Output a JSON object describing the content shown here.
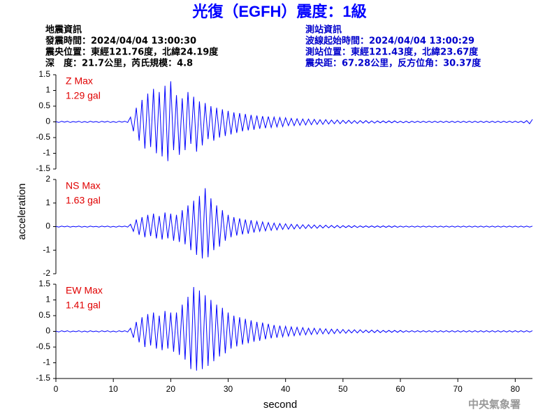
{
  "info": {
    "left_title": "地震資訊",
    "left_lines": [
      "發震時間：2024/04/04 13:00:30",
      "震央位置：東經121.76度，北緯24.19度",
      "深　度：21.7公里，芮氏規模：4.8"
    ],
    "right_title": "測站資訊",
    "right_lines": [
      "波線起始時間：2024/04/04 13:00:29",
      "測站位置：東經121.43度，北緯23.67度",
      "震央距：67.28公里，反方位角：30.37度"
    ],
    "watermark": "中央氣象署"
  },
  "chart_data": {
    "type": "line",
    "title": "光復（EGFH）震度：1級",
    "xlabel": "second",
    "ylabel": "acceleration",
    "xlim": [
      0,
      83
    ],
    "xticks": [
      0,
      10,
      20,
      30,
      40,
      50,
      60,
      70,
      80
    ],
    "x": [
      0,
      0.5,
      1,
      1.5,
      2,
      2.5,
      3,
      3.5,
      4,
      4.5,
      5,
      5.5,
      6,
      6.5,
      7,
      7.5,
      8,
      8.5,
      9,
      9.5,
      10,
      10.5,
      11,
      11.5,
      12,
      12.5,
      13,
      13.5,
      14,
      14.5,
      15,
      15.5,
      16,
      16.5,
      17,
      17.5,
      18,
      18.5,
      19,
      19.5,
      20,
      20.5,
      21,
      21.5,
      22,
      22.5,
      23,
      23.5,
      24,
      24.5,
      25,
      25.5,
      26,
      26.5,
      27,
      27.5,
      28,
      28.5,
      29,
      29.5,
      30,
      30.5,
      31,
      31.5,
      32,
      32.5,
      33,
      33.5,
      34,
      34.5,
      35,
      35.5,
      36,
      36.5,
      37,
      37.5,
      38,
      38.5,
      39,
      39.5,
      40,
      40.5,
      41,
      41.5,
      42,
      42.5,
      43,
      43.5,
      44,
      44.5,
      45,
      45.5,
      46,
      46.5,
      47,
      47.5,
      48,
      48.5,
      49,
      49.5,
      50,
      50.5,
      51,
      51.5,
      52,
      52.5,
      53,
      53.5,
      54,
      54.5,
      55,
      55.5,
      56,
      56.5,
      57,
      57.5,
      58,
      58.5,
      59,
      59.5,
      60,
      60.5,
      61,
      61.5,
      62,
      62.5,
      63,
      63.5,
      64,
      64.5,
      65,
      65.5,
      66,
      66.5,
      67,
      67.5,
      68,
      68.5,
      69,
      69.5,
      70,
      70.5,
      71,
      71.5,
      72,
      72.5,
      73,
      73.5,
      74,
      74.5,
      75,
      75.5,
      76,
      76.5,
      77,
      77.5,
      78,
      78.5,
      79,
      79.5,
      80,
      80.5,
      81,
      81.5,
      82,
      82.5,
      83
    ],
    "series": [
      {
        "name": "Z Max",
        "annotation": "1.29 gal",
        "color": "#0000ff",
        "label_color": "#e00000",
        "ylim": [
          -1.5,
          1.5
        ],
        "yticks": [
          -1.5,
          -1,
          -0.5,
          0,
          0.5,
          1,
          1.5
        ],
        "values": [
          0.01,
          -0.02,
          0.02,
          -0.01,
          0.02,
          -0.02,
          0.01,
          -0.01,
          0.02,
          -0.02,
          0.01,
          -0.02,
          0.02,
          -0.01,
          0.01,
          -0.02,
          0.02,
          -0.01,
          0.02,
          -0.02,
          0.01,
          -0.02,
          0.02,
          -0.01,
          0.02,
          -0.02,
          0.15,
          -0.3,
          0.45,
          -0.6,
          0.7,
          -0.85,
          0.9,
          -0.8,
          1.05,
          -1.0,
          0.95,
          -1.1,
          1.15,
          -1.25,
          1.29,
          -0.9,
          0.85,
          -1.05,
          0.75,
          -0.9,
          0.95,
          -0.7,
          0.8,
          -0.95,
          0.65,
          -0.75,
          0.6,
          -0.55,
          0.5,
          -0.6,
          0.45,
          -0.5,
          0.4,
          -0.45,
          0.35,
          -0.4,
          0.3,
          -0.35,
          0.28,
          -0.3,
          0.25,
          -0.27,
          0.22,
          -0.25,
          0.2,
          -0.22,
          0.18,
          -0.2,
          0.17,
          -0.18,
          0.15,
          -0.16,
          0.14,
          -0.15,
          0.13,
          -0.12,
          0.11,
          -0.12,
          0.1,
          -0.11,
          0.09,
          -0.1,
          0.09,
          -0.09,
          0.08,
          -0.08,
          0.07,
          -0.08,
          0.07,
          -0.07,
          0.06,
          -0.06,
          0.06,
          -0.06,
          0.05,
          -0.05,
          0.05,
          -0.05,
          0.04,
          -0.05,
          0.04,
          -0.04,
          0.04,
          -0.04,
          0.03,
          -0.04,
          0.03,
          -0.03,
          0.03,
          -0.03,
          0.03,
          -0.03,
          0.03,
          -0.03,
          0.02,
          -0.03,
          0.02,
          -0.03,
          0.02,
          -0.02,
          0.02,
          -0.02,
          0.02,
          -0.02,
          0.02,
          -0.02,
          0.02,
          -0.02,
          0.02,
          -0.02,
          0.02,
          -0.02,
          0.02,
          -0.02,
          0.02,
          -0.02,
          0.02,
          -0.02,
          0.02,
          -0.02,
          0.02,
          -0.02,
          0.02,
          -0.02,
          0.02,
          -0.02,
          0.02,
          -0.02,
          0.02,
          -0.02,
          0.02,
          -0.02,
          0.02,
          -0.02,
          0.02,
          -0.02,
          0.02,
          -0.03,
          0.04,
          -0.06,
          0.08
        ]
      },
      {
        "name": "NS Max",
        "annotation": "1.63 gal",
        "color": "#0000ff",
        "label_color": "#e00000",
        "ylim": [
          -2,
          2
        ],
        "yticks": [
          -2,
          -1,
          0,
          1,
          2
        ],
        "values": [
          0.01,
          -0.02,
          0.02,
          -0.01,
          0.02,
          -0.02,
          0.01,
          -0.01,
          0.02,
          -0.02,
          0.01,
          -0.02,
          0.02,
          -0.01,
          0.01,
          -0.02,
          0.02,
          -0.01,
          0.02,
          -0.02,
          0.01,
          -0.02,
          0.02,
          -0.01,
          0.02,
          -0.02,
          0.1,
          -0.2,
          0.3,
          -0.35,
          0.4,
          -0.45,
          0.5,
          -0.4,
          0.55,
          -0.5,
          0.45,
          -0.55,
          0.6,
          -0.5,
          0.55,
          -0.6,
          0.5,
          -0.65,
          0.7,
          -0.75,
          0.9,
          -1.0,
          1.1,
          -1.2,
          1.3,
          -1.35,
          1.63,
          -1.3,
          1.2,
          -1.0,
          0.9,
          -0.85,
          0.7,
          -0.6,
          0.5,
          -0.45,
          0.4,
          -0.38,
          0.35,
          -0.33,
          0.3,
          -0.3,
          0.27,
          -0.25,
          0.22,
          -0.2,
          0.2,
          -0.18,
          0.17,
          -0.16,
          0.15,
          -0.14,
          0.13,
          -0.12,
          0.12,
          -0.11,
          0.1,
          -0.1,
          0.09,
          -0.09,
          0.08,
          -0.08,
          0.08,
          -0.07,
          0.07,
          -0.07,
          0.06,
          -0.06,
          0.06,
          -0.05,
          0.05,
          -0.05,
          0.05,
          -0.05,
          0.04,
          -0.04,
          0.04,
          -0.04,
          0.04,
          -0.04,
          0.03,
          -0.03,
          0.03,
          -0.03,
          0.03,
          -0.03,
          0.03,
          -0.03,
          0.03,
          -0.03,
          0.03,
          -0.03,
          0.03,
          -0.03,
          0.02,
          -0.02,
          0.02,
          -0.02,
          0.02,
          -0.02,
          0.02,
          -0.02,
          0.02,
          -0.02,
          0.02,
          -0.02,
          0.02,
          -0.02,
          0.02,
          -0.02,
          0.02,
          -0.02,
          0.02,
          -0.02,
          0.02,
          -0.02,
          0.02,
          -0.02,
          0.02,
          -0.02,
          0.02,
          -0.02,
          0.02,
          -0.02,
          0.02,
          -0.02,
          0.02,
          -0.02,
          0.02,
          -0.02,
          0.02,
          -0.02,
          0.02,
          -0.02,
          0.02,
          -0.02,
          0.02,
          -0.02,
          0.02,
          -0.02,
          0.02
        ]
      },
      {
        "name": "EW Max",
        "annotation": "1.41 gal",
        "color": "#0000ff",
        "label_color": "#e00000",
        "ylim": [
          -1.5,
          1.5
        ],
        "yticks": [
          -1.5,
          -1,
          -0.5,
          0,
          0.5,
          1,
          1.5
        ],
        "values": [
          0.01,
          -0.02,
          0.02,
          -0.01,
          0.02,
          -0.02,
          0.01,
          -0.01,
          0.02,
          -0.02,
          0.01,
          -0.02,
          0.02,
          -0.01,
          0.01,
          -0.02,
          0.02,
          -0.01,
          0.02,
          -0.02,
          0.01,
          -0.02,
          0.02,
          -0.01,
          0.02,
          -0.02,
          0.1,
          -0.2,
          0.3,
          -0.35,
          0.45,
          -0.5,
          0.55,
          -0.45,
          0.6,
          -0.55,
          0.5,
          -0.6,
          0.65,
          -0.55,
          0.6,
          -0.65,
          0.6,
          -0.75,
          0.85,
          -0.9,
          1.1,
          -1.2,
          1.41,
          -1.25,
          1.3,
          -1.2,
          1.15,
          -1.1,
          1.0,
          -0.95,
          0.85,
          -0.8,
          0.75,
          -0.7,
          0.6,
          -0.55,
          0.5,
          -0.48,
          0.45,
          -0.42,
          0.4,
          -0.38,
          0.35,
          -0.33,
          0.3,
          -0.3,
          0.28,
          -0.25,
          0.24,
          -0.22,
          0.2,
          -0.2,
          0.18,
          -0.17,
          0.16,
          -0.15,
          0.14,
          -0.14,
          0.13,
          -0.12,
          0.12,
          -0.11,
          0.1,
          -0.1,
          0.1,
          -0.09,
          0.09,
          -0.08,
          0.08,
          -0.08,
          0.07,
          -0.07,
          0.07,
          -0.06,
          0.06,
          -0.06,
          0.05,
          -0.05,
          0.05,
          -0.05,
          0.05,
          -0.04,
          0.04,
          -0.04,
          0.04,
          -0.04,
          0.04,
          -0.04,
          0.03,
          -0.03,
          0.03,
          -0.03,
          0.03,
          -0.03,
          0.03,
          -0.03,
          0.02,
          -0.02,
          0.02,
          -0.02,
          0.02,
          -0.02,
          0.02,
          -0.02,
          0.02,
          -0.02,
          0.02,
          -0.02,
          0.02,
          -0.02,
          0.02,
          -0.02,
          0.02,
          -0.02,
          0.02,
          -0.02,
          0.02,
          -0.02,
          0.02,
          -0.02,
          0.02,
          -0.02,
          0.02,
          -0.02,
          0.02,
          -0.02,
          0.02,
          -0.02,
          0.02,
          -0.02,
          0.02,
          -0.02,
          0.02,
          -0.02,
          0.02,
          -0.02,
          0.02,
          -0.02,
          0.02,
          -0.02,
          0.02
        ]
      }
    ]
  }
}
